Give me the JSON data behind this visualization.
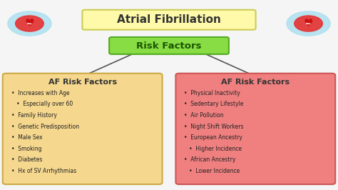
{
  "title": "Atrial Fibrillation",
  "title_box_color": "#FFFAAA",
  "title_box_edge": "#CCCC55",
  "risk_label": "Risk Factors",
  "risk_box_color": "#88DD44",
  "risk_box_edge": "#55AA22",
  "background_color": "#F5F5F5",
  "left_box": {
    "title": "AF Risk Factors",
    "box_color": "#F5D78E",
    "box_edge": "#CCAA44",
    "items": [
      {
        "text": "•  Increases with Age",
        "indent": false
      },
      {
        "text": "   •  Especially over 60",
        "indent": true
      },
      {
        "text": "•  Family History",
        "indent": false
      },
      {
        "text": "•  Genetic Predisposition",
        "indent": false
      },
      {
        "text": "•  Male Sex",
        "indent": false
      },
      {
        "text": "•  Smoking",
        "indent": false
      },
      {
        "text": "•  Diabetes",
        "indent": false
      },
      {
        "text": "•  Hx of SV Arrhythmias",
        "indent": false
      }
    ]
  },
  "right_box": {
    "title": "AF Risk Factors",
    "box_color": "#F08080",
    "box_edge": "#CC5555",
    "items": [
      {
        "text": "•  Physical Inactivity",
        "indent": false
      },
      {
        "text": "•  Sedentary Lifestyle",
        "indent": false
      },
      {
        "text": "•  Air Pollution",
        "indent": false
      },
      {
        "text": "•  Night Shift Workers",
        "indent": false
      },
      {
        "text": "•  European Ancestry",
        "indent": false
      },
      {
        "text": "   •  Higher Incidence",
        "indent": true
      },
      {
        "text": "•  African Ancestry",
        "indent": false
      },
      {
        "text": "   •  Lower Incidence",
        "indent": true
      }
    ]
  }
}
